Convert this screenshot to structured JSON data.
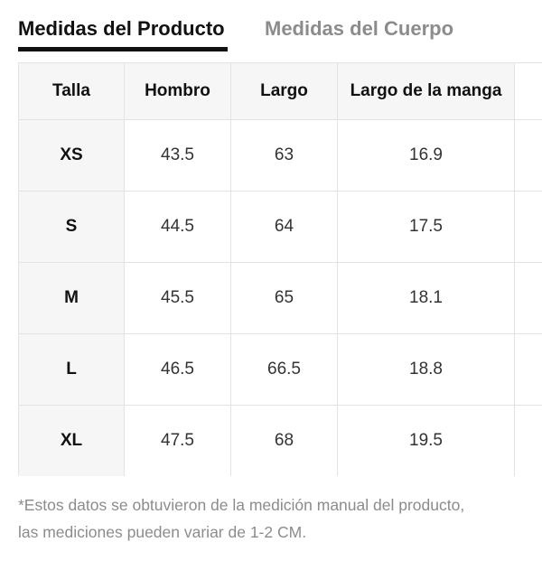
{
  "tabs": {
    "active_label": "Medidas del Producto",
    "inactive_label": "Medidas del Cuerpo"
  },
  "table": {
    "headers": [
      "Talla",
      "Hombro",
      "Largo",
      "Largo de la manga"
    ],
    "rows": [
      {
        "size": "XS",
        "hombro": "43.5",
        "largo": "63",
        "manga": "16.9"
      },
      {
        "size": "S",
        "hombro": "44.5",
        "largo": "64",
        "manga": "17.5"
      },
      {
        "size": "M",
        "hombro": "45.5",
        "largo": "65",
        "manga": "18.1"
      },
      {
        "size": "L",
        "hombro": "46.5",
        "largo": "66.5",
        "manga": "18.8"
      },
      {
        "size": "XL",
        "hombro": "47.5",
        "largo": "68",
        "manga": "19.5"
      }
    ]
  },
  "footnote": {
    "line1": "*Estos datos se obtuvieron de la medición manual del producto,",
    "line2": "las mediciones pueden variar de 1-2 CM."
  },
  "colors": {
    "active_tab": "#111111",
    "inactive_tab": "#8c8c8c",
    "header_bg": "#f6f6f6",
    "border": "#e3e3e3"
  }
}
